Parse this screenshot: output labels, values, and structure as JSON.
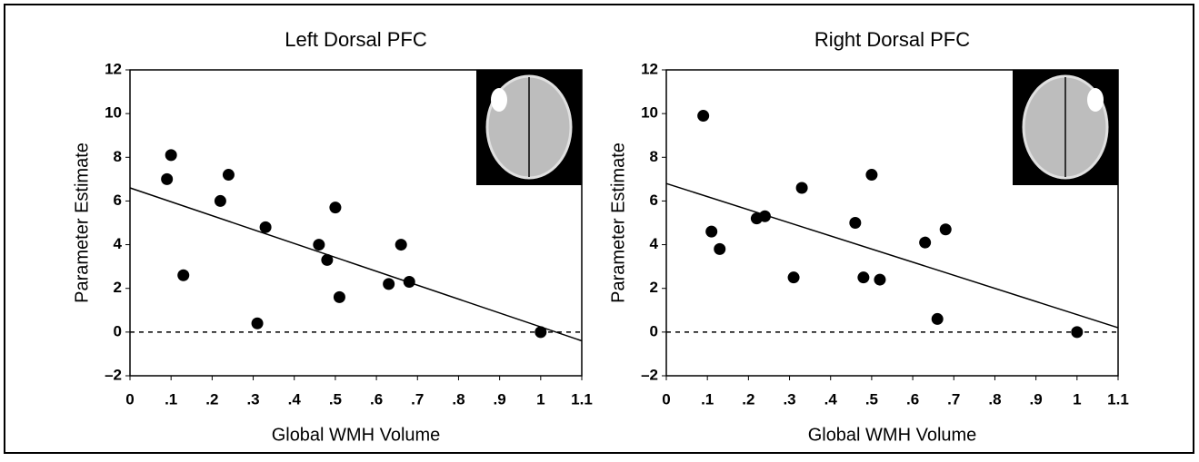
{
  "chart_data": [
    {
      "type": "scatter",
      "title": "Left Dorsal PFC",
      "x_label": "Global WMH Volume",
      "y_label": "Parameter Estimate",
      "x": [
        0.09,
        0.1,
        0.13,
        0.22,
        0.24,
        0.33,
        0.31,
        0.46,
        0.48,
        0.5,
        0.51,
        0.63,
        0.66,
        0.68,
        1.0
      ],
      "values": [
        7.0,
        8.1,
        2.6,
        6.0,
        7.2,
        4.8,
        0.4,
        4.0,
        3.3,
        5.7,
        1.6,
        2.2,
        4.0,
        2.3,
        0.0
      ],
      "color": "#000000",
      "trendline": {
        "x": [
          0,
          1.1
        ],
        "values": [
          6.6,
          -0.4
        ]
      },
      "reference_line": 0,
      "xlim": [
        0,
        1.1
      ],
      "ylim": [
        -2,
        12
      ],
      "xticks": [
        0,
        {
          "value": 0.1,
          "label": ".1"
        },
        {
          "value": 0.2,
          "label": ".2"
        },
        {
          "value": 0.3,
          "label": ".3"
        },
        {
          "value": 0.4,
          "label": ".4"
        },
        {
          "value": 0.5,
          "label": ".5"
        },
        {
          "value": 0.6,
          "label": ".6"
        },
        {
          "value": 0.7,
          "label": ".7"
        },
        {
          "value": 0.8,
          "label": ".8"
        },
        {
          "value": 0.9,
          "label": ".9"
        },
        1,
        1.1
      ],
      "yticks": [
        {
          "value": -2,
          "label": "–2"
        },
        0,
        2,
        4,
        6,
        8,
        10,
        12
      ]
    },
    {
      "type": "scatter",
      "title": "Right Dorsal PFC",
      "x_label": "Global WMH Volume",
      "y_label": "Parameter Estimate",
      "x": [
        0.09,
        0.11,
        0.13,
        0.22,
        0.24,
        0.31,
        0.33,
        0.46,
        0.48,
        0.5,
        0.52,
        0.63,
        0.66,
        0.68,
        1.0
      ],
      "values": [
        9.9,
        4.6,
        3.8,
        5.2,
        5.3,
        2.5,
        6.6,
        5.0,
        2.5,
        7.2,
        2.4,
        4.1,
        0.6,
        4.7,
        0.0
      ],
      "color": "#000000",
      "trendline": {
        "x": [
          0,
          1.1
        ],
        "values": [
          6.8,
          0.2
        ]
      },
      "reference_line": 0,
      "xlim": [
        0,
        1.1
      ],
      "ylim": [
        -2,
        12
      ],
      "xticks": [
        0,
        {
          "value": 0.1,
          "label": ".1"
        },
        {
          "value": 0.2,
          "label": ".2"
        },
        {
          "value": 0.3,
          "label": ".3"
        },
        {
          "value": 0.4,
          "label": ".4"
        },
        {
          "value": 0.5,
          "label": ".5"
        },
        {
          "value": 0.6,
          "label": ".6"
        },
        {
          "value": 0.7,
          "label": ".7"
        },
        {
          "value": 0.8,
          "label": ".8"
        },
        {
          "value": 0.9,
          "label": ".9"
        },
        1,
        1.1
      ],
      "yticks": [
        {
          "value": -2,
          "label": "–2"
        },
        0,
        2,
        4,
        6,
        8,
        10,
        12
      ]
    }
  ]
}
